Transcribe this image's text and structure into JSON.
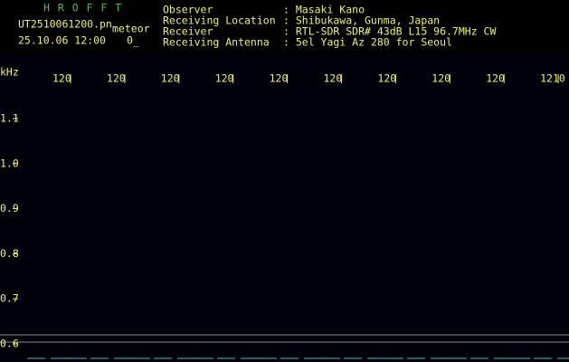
{
  "app": {
    "name": "H R O F F T",
    "file": "UT2510061200.pn",
    "mode": "meteor",
    "datetime": "25.10.06 12:00",
    "count": "0_"
  },
  "info": [
    {
      "label": "Observer",
      "value": ": Masaki Kano"
    },
    {
      "label": "Receiving Location",
      "value": ": Shibukawa, Gunma, Japan"
    },
    {
      "label": "Receiver",
      "value": ": RTL-SDR SDR# 43dB L15 96.7MHz CW"
    },
    {
      "label": "Receiving Antenna",
      "value": ": 5el Yagi Az 280 for Seoul"
    }
  ],
  "axis": {
    "unit": "kHz",
    "x_labels": [
      "120",
      "120",
      "120",
      "120",
      "120",
      "120",
      "120",
      "120",
      "120",
      "1210"
    ],
    "y_labels": [
      "1.1",
      "1.0",
      "0.9",
      "0.8",
      "0.7",
      "0.6"
    ]
  }
}
